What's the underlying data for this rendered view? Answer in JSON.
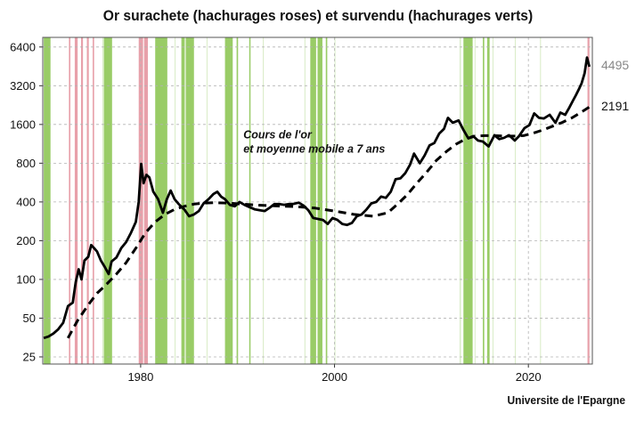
{
  "page": {
    "title": "Or surachete (hachurages roses) et survendu (hachurages verts)",
    "source": "Universite de l'Epargne"
  },
  "chart_data": {
    "type": "line",
    "title": "Or surachete (hachurages roses) et survendu (hachurages verts)",
    "xlabel": "",
    "ylabel": "",
    "y_scale": "log",
    "xlim": [
      1969.9,
      2026.6
    ],
    "ylim": [
      22,
      7600
    ],
    "grid": true,
    "legend": "none",
    "y_ticks": [
      {
        "value": 25,
        "label": "25"
      },
      {
        "value": 50,
        "label": "50"
      },
      {
        "value": 100,
        "label": "100"
      },
      {
        "value": 200,
        "label": "200"
      },
      {
        "value": 400,
        "label": "400"
      },
      {
        "value": 800,
        "label": "800"
      },
      {
        "value": 1600,
        "label": "1600"
      },
      {
        "value": 3200,
        "label": "3200"
      },
      {
        "value": 6400,
        "label": "6400"
      }
    ],
    "x_ticks": [
      {
        "value": 1980,
        "label": "1980"
      },
      {
        "value": 2000,
        "label": "2000"
      },
      {
        "value": 2020,
        "label": "2020"
      }
    ],
    "annotation": {
      "lines": [
        "Cours de l'or",
        "et moyenne mobile a 7 ans"
      ],
      "x": 1990.6,
      "y": 1250
    },
    "series": [
      {
        "key": "price",
        "color": "#000000",
        "style": "solid",
        "end_label": "4495",
        "end_label_color": "#888888",
        "points": [
          [
            1970.0,
            35
          ],
          [
            1970.5,
            36
          ],
          [
            1971.0,
            38
          ],
          [
            1971.5,
            41
          ],
          [
            1972.0,
            46
          ],
          [
            1972.5,
            62
          ],
          [
            1973.0,
            66
          ],
          [
            1973.3,
            95
          ],
          [
            1973.6,
            120
          ],
          [
            1973.9,
            100
          ],
          [
            1974.2,
            140
          ],
          [
            1974.6,
            150
          ],
          [
            1974.9,
            185
          ],
          [
            1975.2,
            175
          ],
          [
            1975.5,
            165
          ],
          [
            1975.9,
            140
          ],
          [
            1976.3,
            125
          ],
          [
            1976.7,
            110
          ],
          [
            1977.0,
            138
          ],
          [
            1977.5,
            148
          ],
          [
            1978.0,
            175
          ],
          [
            1978.5,
            195
          ],
          [
            1979.0,
            230
          ],
          [
            1979.5,
            280
          ],
          [
            1979.8,
            400
          ],
          [
            1980.05,
            790
          ],
          [
            1980.3,
            560
          ],
          [
            1980.6,
            650
          ],
          [
            1980.9,
            620
          ],
          [
            1981.3,
            480
          ],
          [
            1981.8,
            420
          ],
          [
            1982.3,
            330
          ],
          [
            1982.7,
            420
          ],
          [
            1983.1,
            490
          ],
          [
            1983.5,
            420
          ],
          [
            1984.0,
            380
          ],
          [
            1984.5,
            350
          ],
          [
            1985.0,
            310
          ],
          [
            1985.5,
            320
          ],
          [
            1986.0,
            340
          ],
          [
            1986.5,
            390
          ],
          [
            1987.0,
            420
          ],
          [
            1987.5,
            460
          ],
          [
            1987.9,
            480
          ],
          [
            1988.3,
            440
          ],
          [
            1988.7,
            420
          ],
          [
            1989.2,
            380
          ],
          [
            1989.7,
            370
          ],
          [
            1990.2,
            400
          ],
          [
            1990.7,
            380
          ],
          [
            1991.2,
            365
          ],
          [
            1991.8,
            350
          ],
          [
            1992.3,
            345
          ],
          [
            1992.8,
            340
          ],
          [
            1993.3,
            360
          ],
          [
            1993.8,
            385
          ],
          [
            1994.3,
            385
          ],
          [
            1994.8,
            380
          ],
          [
            1995.3,
            385
          ],
          [
            1995.8,
            387
          ],
          [
            1996.3,
            395
          ],
          [
            1996.8,
            375
          ],
          [
            1997.3,
            345
          ],
          [
            1997.8,
            300
          ],
          [
            1998.3,
            295
          ],
          [
            1998.8,
            290
          ],
          [
            1999.3,
            270
          ],
          [
            1999.8,
            300
          ],
          [
            2000.3,
            290
          ],
          [
            2000.8,
            270
          ],
          [
            2001.3,
            265
          ],
          [
            2001.8,
            275
          ],
          [
            2002.3,
            310
          ],
          [
            2002.8,
            320
          ],
          [
            2003.3,
            350
          ],
          [
            2003.8,
            390
          ],
          [
            2004.3,
            400
          ],
          [
            2004.8,
            440
          ],
          [
            2005.3,
            430
          ],
          [
            2005.8,
            480
          ],
          [
            2006.3,
            600
          ],
          [
            2006.8,
            610
          ],
          [
            2007.3,
            670
          ],
          [
            2007.8,
            780
          ],
          [
            2008.2,
            950
          ],
          [
            2008.8,
            800
          ],
          [
            2009.3,
            920
          ],
          [
            2009.8,
            1100
          ],
          [
            2010.3,
            1150
          ],
          [
            2010.8,
            1360
          ],
          [
            2011.3,
            1480
          ],
          [
            2011.7,
            1800
          ],
          [
            2012.2,
            1650
          ],
          [
            2012.8,
            1720
          ],
          [
            2013.3,
            1450
          ],
          [
            2013.8,
            1250
          ],
          [
            2014.3,
            1300
          ],
          [
            2014.8,
            1200
          ],
          [
            2015.3,
            1180
          ],
          [
            2015.9,
            1080
          ],
          [
            2016.5,
            1320
          ],
          [
            2017.0,
            1230
          ],
          [
            2017.5,
            1260
          ],
          [
            2018.0,
            1320
          ],
          [
            2018.6,
            1200
          ],
          [
            2019.0,
            1290
          ],
          [
            2019.6,
            1500
          ],
          [
            2020.1,
            1580
          ],
          [
            2020.6,
            1950
          ],
          [
            2021.1,
            1800
          ],
          [
            2021.6,
            1780
          ],
          [
            2022.2,
            1900
          ],
          [
            2022.8,
            1650
          ],
          [
            2023.3,
            1980
          ],
          [
            2023.8,
            1900
          ],
          [
            2024.2,
            2150
          ],
          [
            2024.6,
            2450
          ],
          [
            2024.9,
            2700
          ],
          [
            2025.2,
            3000
          ],
          [
            2025.5,
            3350
          ],
          [
            2025.8,
            4000
          ],
          [
            2026.05,
            5300
          ],
          [
            2026.3,
            4495
          ]
        ]
      },
      {
        "key": "moving-average",
        "color": "#000000",
        "style": "dashed",
        "end_label": "2191",
        "end_label_color": "#111111",
        "points": [
          [
            1972.5,
            35
          ],
          [
            1973.5,
            48
          ],
          [
            1974.5,
            62
          ],
          [
            1975.5,
            78
          ],
          [
            1976.5,
            92
          ],
          [
            1977.5,
            110
          ],
          [
            1978.5,
            135
          ],
          [
            1979.5,
            175
          ],
          [
            1980.5,
            230
          ],
          [
            1981.5,
            280
          ],
          [
            1982.5,
            320
          ],
          [
            1983.5,
            350
          ],
          [
            1984.5,
            370
          ],
          [
            1985.5,
            385
          ],
          [
            1986.5,
            392
          ],
          [
            1987.5,
            395
          ],
          [
            1988.5,
            393
          ],
          [
            1989.5,
            390
          ],
          [
            1990.5,
            385
          ],
          [
            1992.0,
            378
          ],
          [
            1994.0,
            372
          ],
          [
            1996.0,
            368
          ],
          [
            1998.0,
            358
          ],
          [
            2000.0,
            340
          ],
          [
            2002.0,
            320
          ],
          [
            2004.0,
            310
          ],
          [
            2005.5,
            330
          ],
          [
            2006.5,
            385
          ],
          [
            2007.5,
            455
          ],
          [
            2008.5,
            560
          ],
          [
            2009.5,
            680
          ],
          [
            2010.5,
            840
          ],
          [
            2011.5,
            980
          ],
          [
            2012.5,
            1120
          ],
          [
            2013.5,
            1230
          ],
          [
            2014.5,
            1300
          ],
          [
            2015.5,
            1310
          ],
          [
            2016.5,
            1310
          ],
          [
            2017.5,
            1300
          ],
          [
            2018.5,
            1300
          ],
          [
            2019.5,
            1310
          ],
          [
            2020.5,
            1370
          ],
          [
            2021.5,
            1450
          ],
          [
            2022.5,
            1550
          ],
          [
            2023.5,
            1660
          ],
          [
            2024.5,
            1800
          ],
          [
            2025.5,
            2000
          ],
          [
            2026.3,
            2191
          ]
        ]
      }
    ],
    "shaded_periods": {
      "overbought_color": "#e8a0aa",
      "oversold_color": "#99cc66",
      "overbought": [
        [
          1972.6,
          1972.75
        ],
        [
          1973.2,
          1973.5
        ],
        [
          1973.85,
          1974.05
        ],
        [
          1974.45,
          1974.65
        ],
        [
          1975.05,
          1975.2
        ],
        [
          1979.8,
          1980.25
        ],
        [
          1980.35,
          1980.75
        ],
        [
          2026.1,
          2026.3
        ]
      ],
      "oversold": [
        [
          1970.0,
          1970.7
        ],
        [
          1976.2,
          1977.05
        ],
        [
          1981.5,
          1982.75
        ],
        [
          1984.2,
          1984.55
        ],
        [
          1984.65,
          1985.5
        ],
        [
          1988.7,
          1989.5
        ],
        [
          1989.9,
          1990.05
        ],
        [
          1991.2,
          1991.3
        ],
        [
          1997.5,
          1998.1
        ],
        [
          1998.25,
          1998.75
        ],
        [
          1999.1,
          1999.25
        ],
        [
          2013.3,
          2014.25
        ],
        [
          2015.3,
          2015.45
        ],
        [
          2015.75,
          2016.0
        ]
      ],
      "oversold_light": [
        [
          1976.05,
          1976.15
        ],
        [
          1983.5,
          1983.6
        ],
        [
          1986.8,
          1986.9
        ],
        [
          1992.6,
          1992.7
        ],
        [
          1996.9,
          1997.0
        ],
        [
          2000.0,
          2000.1
        ],
        [
          2012.9,
          2013.05
        ],
        [
          2014.45,
          2014.55
        ],
        [
          2016.3,
          2016.4
        ],
        [
          2018.6,
          2018.7
        ],
        [
          2021.2,
          2021.3
        ]
      ]
    }
  }
}
